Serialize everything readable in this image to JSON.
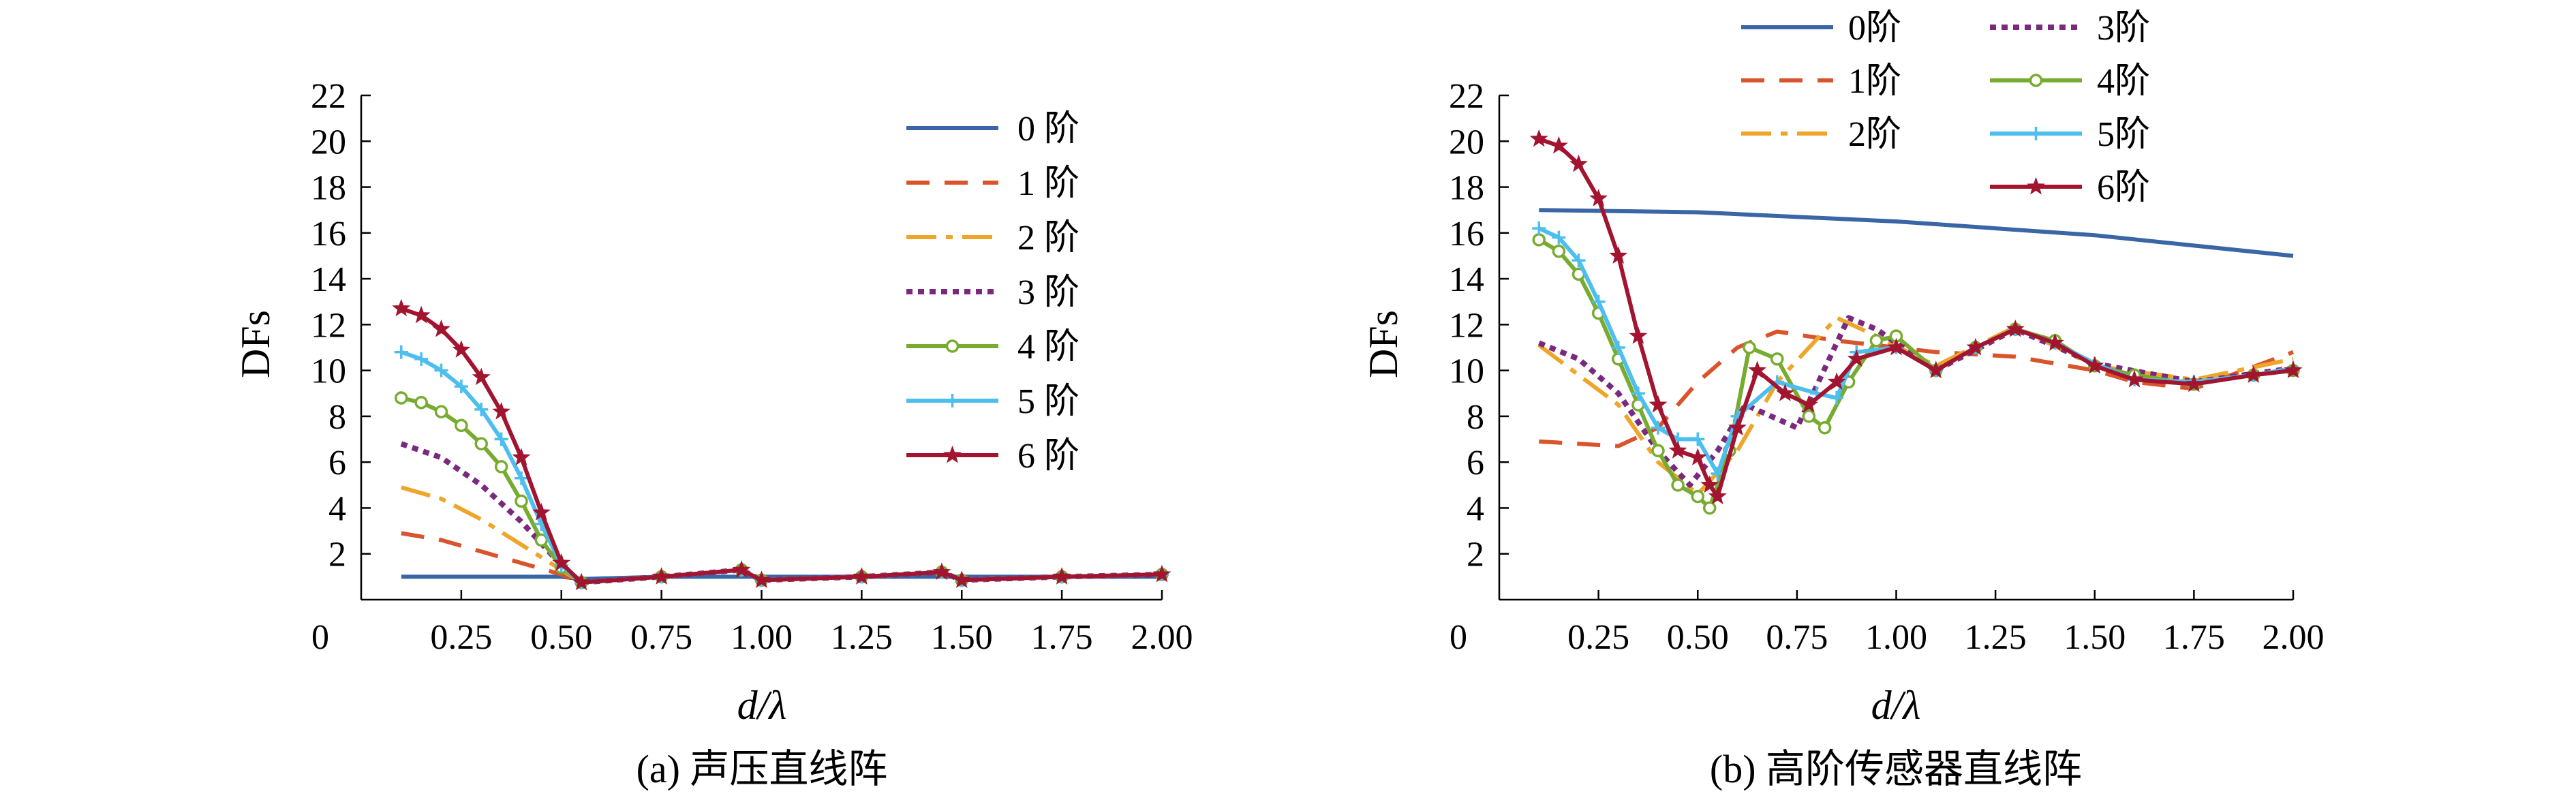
{
  "chart_data": [
    {
      "type": "line",
      "caption": "(a) 声压直线阵",
      "xlabel": "d/λ",
      "ylabel": "DFs",
      "xlim": [
        0,
        2.0
      ],
      "ylim": [
        0,
        22
      ],
      "xticks": [
        "0",
        "0.25",
        "0.50",
        "0.75",
        "1.00",
        "1.25",
        "1.50",
        "1.75",
        "2.00"
      ],
      "xtick_values": [
        0,
        0.25,
        0.5,
        0.75,
        1.0,
        1.25,
        1.5,
        1.75,
        2.0
      ],
      "yticks": [
        2,
        4,
        6,
        8,
        10,
        12,
        14,
        16,
        18,
        20,
        22
      ],
      "legend_position": "top-right",
      "series": [
        {
          "name": "0 阶",
          "color": "#3a66a6",
          "style": "solid",
          "marker": "none",
          "x": [
            0.1,
            0.5,
            0.55,
            0.75,
            1.0,
            1.25,
            1.5,
            1.75,
            2.0
          ],
          "y": [
            1.0,
            1.0,
            0.9,
            1.0,
            1.0,
            1.0,
            1.0,
            1.0,
            1.0
          ]
        },
        {
          "name": "1 阶",
          "color": "#d9542b",
          "style": "dash",
          "marker": "none",
          "x": [
            0.1,
            0.2,
            0.3,
            0.4,
            0.5,
            0.55,
            0.75,
            0.95,
            1.0,
            1.25,
            1.45,
            1.5,
            1.75,
            2.0
          ],
          "y": [
            2.9,
            2.6,
            2.1,
            1.6,
            1.1,
            0.75,
            1.0,
            1.3,
            0.85,
            1.0,
            1.2,
            0.85,
            1.0,
            1.1
          ]
        },
        {
          "name": "2 阶",
          "color": "#eda62a",
          "style": "dashdot",
          "marker": "none",
          "x": [
            0.1,
            0.2,
            0.3,
            0.4,
            0.5,
            0.55,
            0.75,
            0.95,
            1.0,
            1.25,
            1.45,
            1.5,
            1.75,
            2.0
          ],
          "y": [
            4.9,
            4.4,
            3.5,
            2.4,
            1.3,
            0.75,
            1.0,
            1.3,
            0.85,
            1.0,
            1.2,
            0.85,
            1.0,
            1.1
          ]
        },
        {
          "name": "3 阶",
          "color": "#7a2a7e",
          "style": "dot",
          "marker": "none",
          "x": [
            0.1,
            0.2,
            0.3,
            0.4,
            0.5,
            0.55,
            0.75,
            0.95,
            1.0,
            1.25,
            1.45,
            1.5,
            1.75,
            2.0
          ],
          "y": [
            6.8,
            6.2,
            5.0,
            3.4,
            1.5,
            0.75,
            1.0,
            1.3,
            0.85,
            1.0,
            1.2,
            0.85,
            1.0,
            1.1
          ]
        },
        {
          "name": "4 阶",
          "color": "#77ac30",
          "style": "solid",
          "marker": "circle",
          "x": [
            0.1,
            0.15,
            0.2,
            0.25,
            0.3,
            0.35,
            0.4,
            0.45,
            0.5,
            0.55,
            0.75,
            0.95,
            1.0,
            1.25,
            1.45,
            1.5,
            1.75,
            2.0
          ],
          "y": [
            8.8,
            8.6,
            8.2,
            7.6,
            6.8,
            5.8,
            4.3,
            2.6,
            1.4,
            0.75,
            1.0,
            1.3,
            0.85,
            1.0,
            1.2,
            0.85,
            1.0,
            1.1
          ]
        },
        {
          "name": "5 阶",
          "color": "#4dbeee",
          "style": "solid",
          "marker": "plus",
          "x": [
            0.1,
            0.15,
            0.2,
            0.25,
            0.3,
            0.35,
            0.4,
            0.45,
            0.5,
            0.55,
            0.75,
            0.95,
            1.0,
            1.25,
            1.45,
            1.5,
            1.75,
            2.0
          ],
          "y": [
            10.8,
            10.5,
            10.0,
            9.3,
            8.3,
            7.0,
            5.3,
            3.3,
            1.5,
            0.75,
            1.0,
            1.3,
            0.85,
            1.0,
            1.2,
            0.85,
            1.0,
            1.1
          ]
        },
        {
          "name": "6 阶",
          "color": "#a2142f",
          "style": "solid",
          "marker": "star",
          "x": [
            0.1,
            0.15,
            0.2,
            0.25,
            0.3,
            0.35,
            0.4,
            0.45,
            0.5,
            0.55,
            0.75,
            0.95,
            1.0,
            1.25,
            1.45,
            1.5,
            1.75,
            2.0
          ],
          "y": [
            12.7,
            12.4,
            11.8,
            10.9,
            9.7,
            8.2,
            6.2,
            3.8,
            1.6,
            0.75,
            1.0,
            1.3,
            0.85,
            1.0,
            1.2,
            0.85,
            1.0,
            1.1
          ]
        }
      ]
    },
    {
      "type": "line",
      "caption": "(b) 高阶传感器直线阵",
      "xlabel": "d/λ",
      "ylabel": "DFs",
      "xlim": [
        0,
        2.0
      ],
      "ylim": [
        0,
        22
      ],
      "xticks": [
        "0",
        "0.25",
        "0.50",
        "0.75",
        "1.00",
        "1.25",
        "1.50",
        "1.75",
        "2.00"
      ],
      "xtick_values": [
        0,
        0.25,
        0.5,
        0.75,
        1.0,
        1.25,
        1.5,
        1.75,
        2.0
      ],
      "yticks": [
        2,
        4,
        6,
        8,
        10,
        12,
        14,
        16,
        18,
        20,
        22
      ],
      "legend_position": "top",
      "series": [
        {
          "name": "0阶",
          "color": "#3a66a6",
          "style": "solid",
          "marker": "none",
          "x": [
            0.1,
            0.5,
            1.0,
            1.5,
            2.0
          ],
          "y": [
            17.0,
            16.9,
            16.5,
            15.9,
            15.0
          ]
        },
        {
          "name": "1阶",
          "color": "#d9542b",
          "style": "dash",
          "marker": "none",
          "x": [
            0.1,
            0.3,
            0.4,
            0.5,
            0.6,
            0.7,
            0.85,
            1.0,
            1.1,
            1.3,
            1.5,
            1.6,
            1.75,
            2.0
          ],
          "y": [
            6.9,
            6.7,
            7.5,
            9.5,
            11.0,
            11.7,
            11.3,
            11.0,
            10.8,
            10.6,
            10.0,
            9.5,
            9.2,
            10.8
          ]
        },
        {
          "name": "2阶",
          "color": "#eda62a",
          "style": "dashdot",
          "marker": "none",
          "x": [
            0.1,
            0.3,
            0.4,
            0.5,
            0.6,
            0.7,
            0.85,
            0.95,
            1.1,
            1.3,
            1.5,
            1.75,
            2.0
          ],
          "y": [
            11.1,
            8.5,
            6.0,
            4.6,
            6.5,
            9.5,
            12.3,
            11.5,
            10.2,
            11.9,
            10.2,
            9.6,
            10.5
          ]
        },
        {
          "name": "3阶",
          "color": "#7a2a7e",
          "style": "dot",
          "marker": "none",
          "x": [
            0.1,
            0.2,
            0.3,
            0.4,
            0.48,
            0.55,
            0.62,
            0.75,
            0.88,
            0.95,
            1.1,
            1.3,
            1.5,
            1.75,
            2.0
          ],
          "y": [
            11.2,
            10.5,
            9.0,
            6.5,
            5.0,
            6.5,
            8.5,
            7.5,
            12.3,
            11.8,
            10.0,
            11.8,
            10.3,
            9.5,
            10.1
          ]
        },
        {
          "name": "4阶",
          "color": "#77ac30",
          "style": "solid",
          "marker": "circle",
          "x": [
            0.1,
            0.15,
            0.2,
            0.25,
            0.3,
            0.35,
            0.4,
            0.45,
            0.5,
            0.53,
            0.58,
            0.63,
            0.7,
            0.78,
            0.82,
            0.88,
            0.95,
            1.0,
            1.1,
            1.2,
            1.3,
            1.4,
            1.5,
            1.6,
            1.75,
            1.9,
            2.0
          ],
          "y": [
            15.7,
            15.2,
            14.2,
            12.5,
            10.5,
            8.5,
            6.5,
            5.0,
            4.5,
            4.0,
            6.5,
            11.0,
            10.5,
            8.0,
            7.5,
            9.5,
            11.3,
            11.5,
            10.0,
            11.0,
            11.8,
            11.3,
            10.2,
            9.8,
            9.4,
            9.8,
            10.0
          ]
        },
        {
          "name": "5阶",
          "color": "#4dbeee",
          "style": "solid",
          "marker": "plus",
          "x": [
            0.1,
            0.15,
            0.2,
            0.25,
            0.3,
            0.35,
            0.4,
            0.45,
            0.5,
            0.55,
            0.6,
            0.7,
            0.8,
            0.85,
            0.9,
            1.0,
            1.1,
            1.2,
            1.3,
            1.4,
            1.5,
            1.6,
            1.75,
            1.9,
            2.0
          ],
          "y": [
            16.2,
            15.8,
            14.8,
            13.0,
            11.0,
            9.0,
            7.5,
            7.0,
            7.0,
            5.5,
            8.0,
            9.5,
            9.0,
            8.8,
            10.8,
            11.0,
            10.0,
            11.0,
            11.8,
            11.2,
            10.3,
            9.6,
            9.5,
            9.8,
            10.1
          ]
        },
        {
          "name": "6阶",
          "color": "#a2142f",
          "style": "solid",
          "marker": "star",
          "x": [
            0.1,
            0.15,
            0.2,
            0.25,
            0.3,
            0.35,
            0.4,
            0.45,
            0.5,
            0.53,
            0.55,
            0.6,
            0.65,
            0.72,
            0.78,
            0.85,
            0.9,
            1.0,
            1.1,
            1.2,
            1.3,
            1.4,
            1.5,
            1.6,
            1.75,
            1.9,
            2.0
          ],
          "y": [
            20.1,
            19.8,
            19.0,
            17.5,
            15.0,
            11.5,
            8.5,
            6.5,
            6.2,
            5.0,
            4.5,
            7.5,
            10.0,
            9.0,
            8.5,
            9.5,
            10.5,
            11.0,
            10.0,
            11.0,
            11.8,
            11.2,
            10.2,
            9.6,
            9.4,
            9.8,
            10.0
          ]
        }
      ]
    }
  ]
}
